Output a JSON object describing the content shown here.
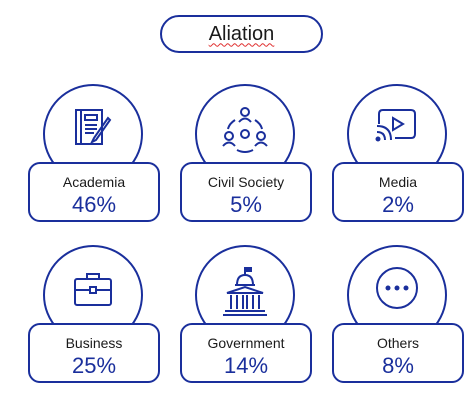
{
  "title": "Aliation",
  "chart_data": {
    "type": "table",
    "title": "Aliation",
    "categories": [
      "Academia",
      "Civil Society",
      "Media",
      "Business",
      "Government",
      "Others"
    ],
    "values": [
      46,
      5,
      2,
      25,
      14,
      8
    ],
    "value_labels": [
      "46%",
      "5%",
      "2%",
      "25%",
      "14%",
      "8%"
    ],
    "unit": "%"
  },
  "items": [
    {
      "label": "Academia",
      "value": "46%",
      "icon": "notebook-pen-icon"
    },
    {
      "label": "Civil Society",
      "value": "5%",
      "icon": "people-network-icon"
    },
    {
      "label": "Media",
      "value": "2%",
      "icon": "video-cast-icon"
    },
    {
      "label": "Business",
      "value": "25%",
      "icon": "briefcase-icon"
    },
    {
      "label": "Government",
      "value": "14%",
      "icon": "capitol-building-icon"
    },
    {
      "label": "Others",
      "value": "8%",
      "icon": "more-dots-icon"
    }
  ],
  "colors": {
    "accent": "#1a2f9c",
    "text": "#1a1a1a",
    "spellcheck": "#e03030"
  }
}
